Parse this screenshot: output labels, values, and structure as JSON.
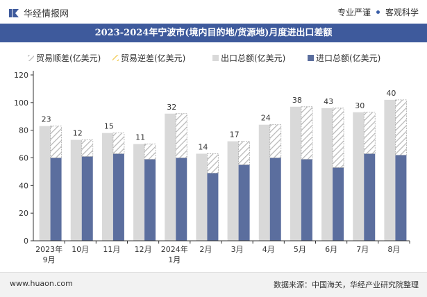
{
  "header": {
    "brand": "华经情报网",
    "slogan_left": "专业严谨",
    "slogan_right": "客观科学"
  },
  "footer": {
    "url": "www.huaon.com",
    "source": "数据来源：中国海关，华经产业研究院整理"
  },
  "colors": {
    "title_bg": "#3e5a9c",
    "export_bar": "#d9d9d9",
    "import_bar": "#5b6e9e",
    "surplus_hatch": "#b7b7b7",
    "deficit_hatch": "#f2c94c"
  },
  "chart_data": {
    "type": "bar",
    "title": "2023-2024年宁波市(境内目的地/货源地)月度进出口差额",
    "categories": [
      [
        "2023年",
        "9月"
      ],
      [
        "10月"
      ],
      [
        "11月"
      ],
      [
        "12月"
      ],
      [
        "2024年",
        "1月"
      ],
      [
        "2月"
      ],
      [
        "3月"
      ],
      [
        "4月"
      ],
      [
        "5月"
      ],
      [
        "6月"
      ],
      [
        "7月"
      ],
      [
        "8月"
      ]
    ],
    "series": [
      {
        "name": "贸易顺差(亿美元)",
        "values": [
          23,
          12,
          15,
          11,
          32,
          14,
          17,
          24,
          38,
          43,
          30,
          40
        ]
      },
      {
        "name": "贸易逆差(亿美元)",
        "values": [
          0,
          0,
          0,
          0,
          0,
          0,
          0,
          0,
          0,
          0,
          0,
          0
        ]
      },
      {
        "name": "出口总额(亿美元)",
        "values": [
          83,
          73,
          78,
          70,
          92,
          63,
          72,
          84,
          97,
          96,
          93,
          102
        ]
      },
      {
        "name": "进口总额(亿美元)",
        "values": [
          60,
          61,
          63,
          59,
          60,
          49,
          55,
          60,
          59,
          53,
          63,
          62
        ]
      }
    ],
    "ylim": [
      0,
      120
    ],
    "yticks": [
      0,
      20,
      40,
      60,
      80,
      100,
      120
    ],
    "legend_position": "top",
    "grid": false
  }
}
